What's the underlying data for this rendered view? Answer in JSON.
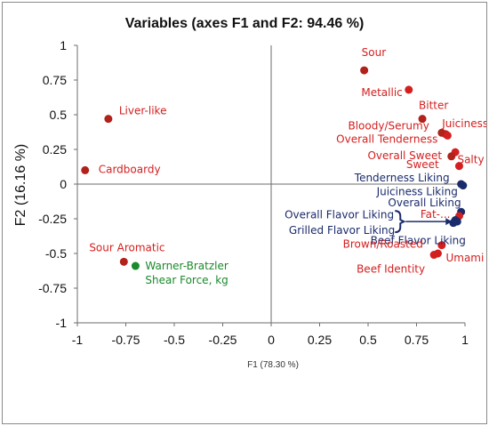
{
  "chart_data": {
    "type": "scatter",
    "title": "Variables (axes F1 and F2: 94.46 %)",
    "xlabel": "F1 (78.30 %)",
    "ylabel": "F2 (16.16 %)",
    "xlim": [
      -1,
      1
    ],
    "ylim": [
      -1,
      1
    ],
    "xticks": [
      "-1",
      "-0.75",
      "-0.5",
      "-0.25",
      "0",
      "0.25",
      "0.5",
      "0.75",
      "1"
    ],
    "yticks": [
      "1",
      "0.75",
      "0.5",
      "0.25",
      "0",
      "-0.25",
      "-0.5",
      "-0.75",
      "-1"
    ],
    "grid": false,
    "colors": {
      "sensory": "#d41f1f",
      "sensory_dark": "#b0221a",
      "consumer": "#1a2b6b",
      "shear": "#1a8a2a"
    },
    "points": [
      {
        "label": "Sour",
        "x": 0.48,
        "y": 0.82,
        "group": "sensory_dark"
      },
      {
        "label": "Metallic",
        "x": 0.71,
        "y": 0.68,
        "group": "sensory"
      },
      {
        "label": "Bitter",
        "x": 0.78,
        "y": 0.47,
        "group": "sensory_dark"
      },
      {
        "label": "Juiciness",
        "x": 0.9,
        "y": 0.36,
        "group": "sensory_dark"
      },
      {
        "label": "Bloody/Serumy",
        "x": 0.88,
        "y": 0.37,
        "group": "sensory_dark"
      },
      {
        "label": "Overall Tenderness",
        "x": 0.91,
        "y": 0.35,
        "group": "sensory"
      },
      {
        "label": "Overall Sweet",
        "x": 0.95,
        "y": 0.23,
        "group": "sensory"
      },
      {
        "label": "Sweet",
        "x": 0.93,
        "y": 0.2,
        "group": "sensory_dark"
      },
      {
        "label": "Salty",
        "x": 0.97,
        "y": 0.13,
        "group": "sensory"
      },
      {
        "label": "Tenderness Liking",
        "x": 0.98,
        "y": 0.0,
        "group": "consumer"
      },
      {
        "label": "Juiciness Liking",
        "x": 0.99,
        "y": -0.01,
        "group": "consumer"
      },
      {
        "label": "Overall Liking",
        "x": 0.98,
        "y": -0.2,
        "group": "consumer"
      },
      {
        "label": "Fat-...",
        "x": 0.97,
        "y": -0.23,
        "group": "sensory"
      },
      {
        "label": "Overall Flavor Liking",
        "x": 0.95,
        "y": -0.26,
        "group": "consumer"
      },
      {
        "label": "Grilled Flavor Liking",
        "x": 0.96,
        "y": -0.27,
        "group": "consumer"
      },
      {
        "label": "Beef Flavor Liking",
        "x": 0.94,
        "y": -0.28,
        "group": "consumer"
      },
      {
        "label": "Brown/Roasted",
        "x": 0.88,
        "y": -0.44,
        "group": "sensory"
      },
      {
        "label": "Umami",
        "x": 0.86,
        "y": -0.5,
        "group": "sensory"
      },
      {
        "label": "Beef Identity",
        "x": 0.84,
        "y": -0.51,
        "group": "sensory"
      },
      {
        "label": "Liver-like",
        "x": -0.84,
        "y": 0.47,
        "group": "sensory_dark"
      },
      {
        "label": "Cardboardy",
        "x": -0.96,
        "y": 0.1,
        "group": "sensory_dark"
      },
      {
        "label": "Sour Aromatic",
        "x": -0.76,
        "y": -0.56,
        "group": "sensory_dark"
      },
      {
        "label": "Warner-Bratzler Shear Force, kg",
        "x": -0.7,
        "y": -0.59,
        "group": "shear"
      }
    ]
  }
}
